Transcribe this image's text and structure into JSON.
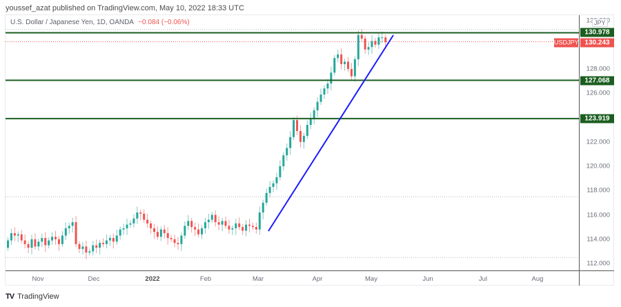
{
  "publisher_line": "youssef_azat published on TradingView.com, May 10, 2022 18:33 UTC",
  "legend": {
    "title": "U.S. Dollar / Japanese Yen, 1D, OANDA",
    "change": "−0.084 (−0.06%)"
  },
  "colors": {
    "up": "#26a69a",
    "down": "#ef5350",
    "horizontal_line": "#1b5e20",
    "trendline": "#1a1aff",
    "current_price": "#ef5350",
    "grid_dotted": "#b2b5be"
  },
  "price_axis": {
    "currency_label": "JPY",
    "ticks": [
      "130.000",
      "128.000",
      "126.000",
      "122.000",
      "120.000",
      "118.000",
      "116.000",
      "114.000",
      "112.000"
    ],
    "tags": {
      "resistance_1": "130.978",
      "current_price": "130.243",
      "support_1": "127.068",
      "support_2": "123.919"
    },
    "symbol_label": "USDJPY"
  },
  "time_axis": {
    "labels": [
      "Nov",
      "Dec",
      "2022",
      "Feb",
      "Mar",
      "Apr",
      "May",
      "Jun",
      "Jul",
      "Aug"
    ]
  },
  "footer": {
    "logo": "TV",
    "brand": "TradingView"
  },
  "chart_data": {
    "type": "candlestick",
    "title": "U.S. Dollar / Japanese Yen, 1D, OANDA",
    "symbol": "USDJPY",
    "interval": "1D",
    "xlabel": "",
    "ylabel": "JPY",
    "ylim": [
      111.5,
      131.5
    ],
    "x_ticks": [
      "Nov",
      "Dec",
      "2022",
      "Feb",
      "Mar",
      "Apr",
      "May",
      "Jun",
      "Jul",
      "Aug"
    ],
    "y_ticks": [
      112,
      114,
      116,
      118,
      120,
      122,
      124,
      126,
      128,
      130
    ],
    "last_price": 130.243,
    "change": -0.084,
    "change_pct": -0.06,
    "horizontal_levels": [
      130.978,
      127.068,
      123.919
    ],
    "trendline": {
      "from": {
        "date": "2022-03-07",
        "price": 114.7
      },
      "to": {
        "date": "2022-05-12",
        "price": 131.1
      }
    },
    "candles_approx_close": [
      113.9,
      114.5,
      114.3,
      114.4,
      113.9,
      113.6,
      113.3,
      114.0,
      113.4,
      113.8,
      114.1,
      113.5,
      113.9,
      114.2,
      114.0,
      113.6,
      114.3,
      114.9,
      115.1,
      115.4,
      113.6,
      113.2,
      113.4,
      112.9,
      113.0,
      113.5,
      113.3,
      113.7,
      113.6,
      113.9,
      114.1,
      113.8,
      114.3,
      114.8,
      114.9,
      115.2,
      115.3,
      115.7,
      116.2,
      116.1,
      115.6,
      115.3,
      114.9,
      114.6,
      114.2,
      114.8,
      114.5,
      114.1,
      114.0,
      113.7,
      113.6,
      114.3,
      115.1,
      115.5,
      115.0,
      114.8,
      114.4,
      114.9,
      115.4,
      115.6,
      116.0,
      115.4,
      115.2,
      115.5,
      115.1,
      114.8,
      114.9,
      115.3,
      115.0,
      114.7,
      115.2,
      115.1,
      115.0,
      114.8,
      116.2,
      117.0,
      117.8,
      118.3,
      118.6,
      119.1,
      120.0,
      120.9,
      121.5,
      122.4,
      123.8,
      122.9,
      122.0,
      122.5,
      123.4,
      123.9,
      124.6,
      125.3,
      125.9,
      126.4,
      126.8,
      127.7,
      128.9,
      129.2,
      128.4,
      128.6,
      128.0,
      127.4,
      128.8,
      130.8,
      130.5,
      129.6,
      129.8,
      130.3,
      130.0,
      130.6,
      130.6,
      130.2
    ]
  }
}
